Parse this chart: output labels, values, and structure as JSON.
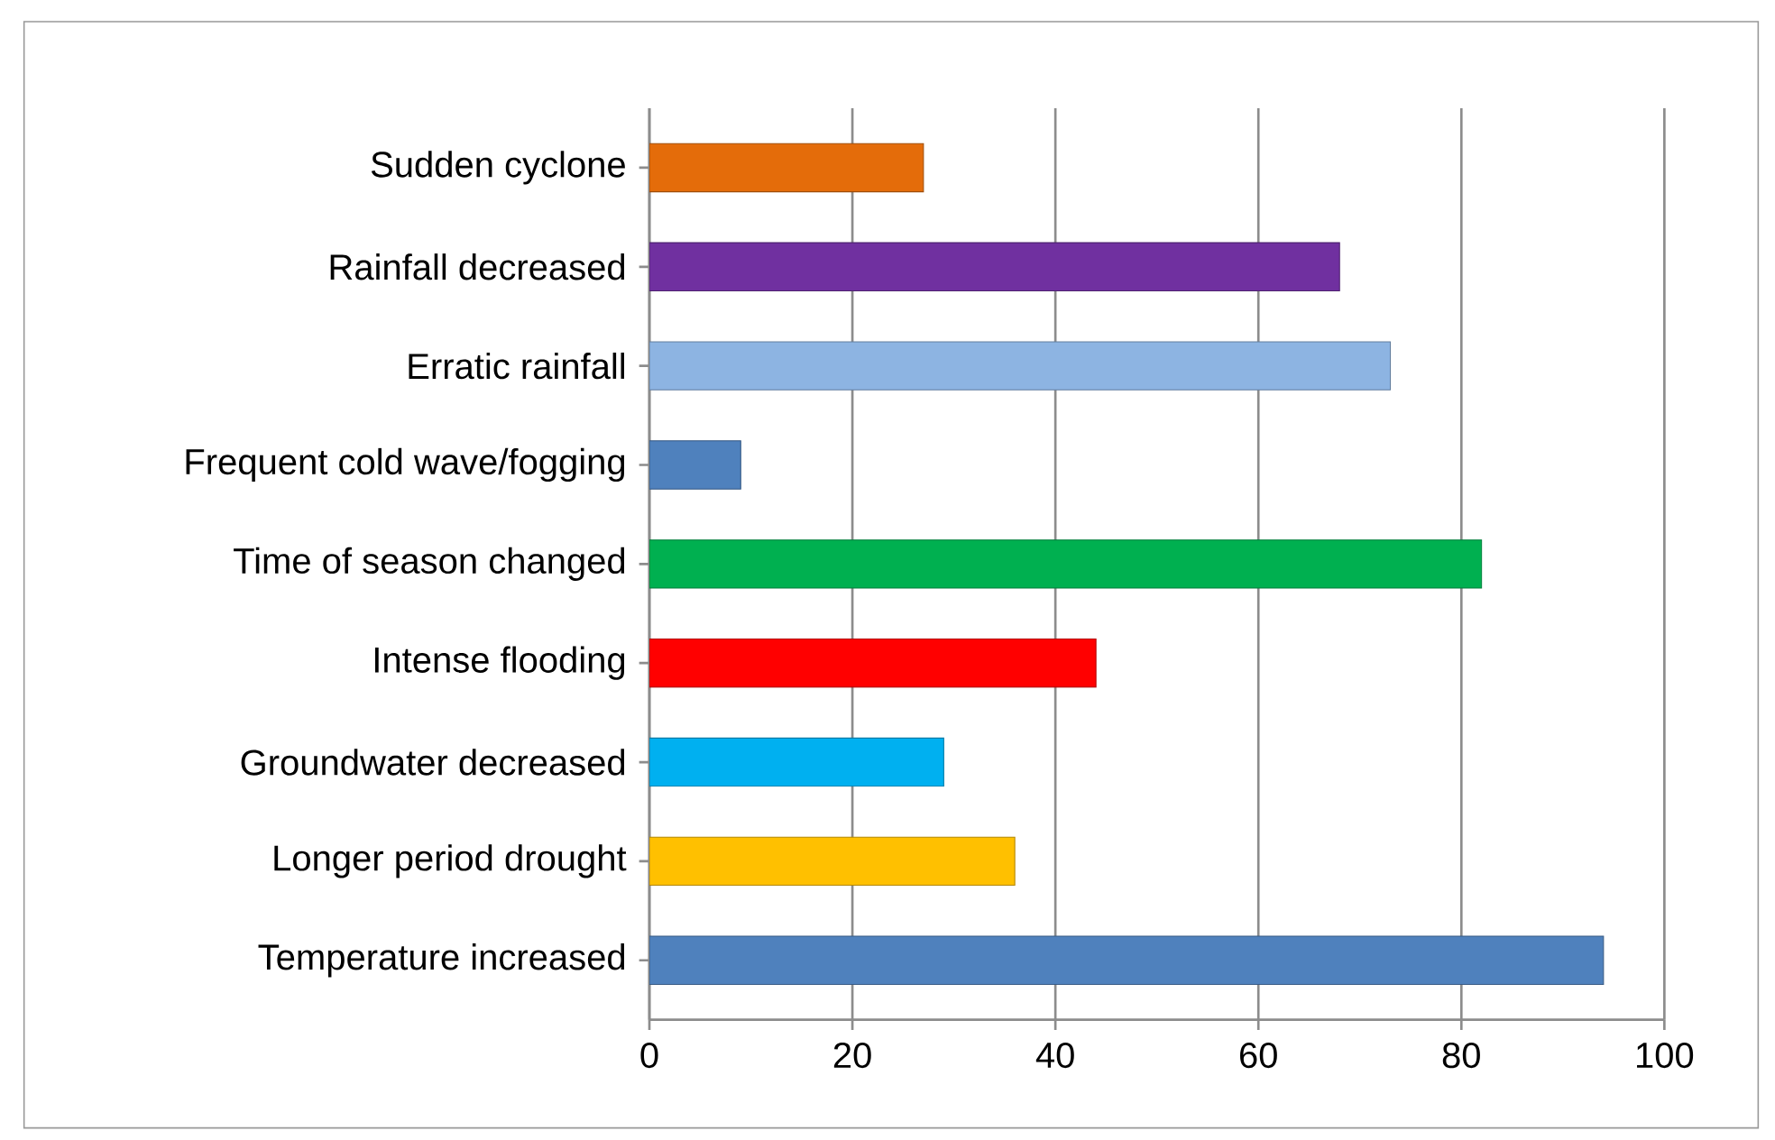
{
  "chart_data": {
    "type": "bar",
    "orientation": "horizontal",
    "categories": [
      "Sudden cyclone",
      "Rainfall decreased",
      "Erratic rainfall",
      "Frequent cold wave/fogging",
      "Time of season changed",
      "Intense flooding",
      "Groundwater decreased",
      "Longer period drought",
      "Temperature increased"
    ],
    "values": [
      27,
      68,
      73,
      9,
      82,
      44,
      29,
      36,
      94
    ],
    "colors": [
      "#e46c0a",
      "#7030a0",
      "#8db4e2",
      "#4f81bd",
      "#00b050",
      "#ff0000",
      "#00b0f0",
      "#ffc000",
      "#4f81bd"
    ],
    "xlim": [
      0,
      100
    ],
    "xticks": [
      0,
      20,
      40,
      60,
      80,
      100
    ],
    "grid": "x"
  }
}
